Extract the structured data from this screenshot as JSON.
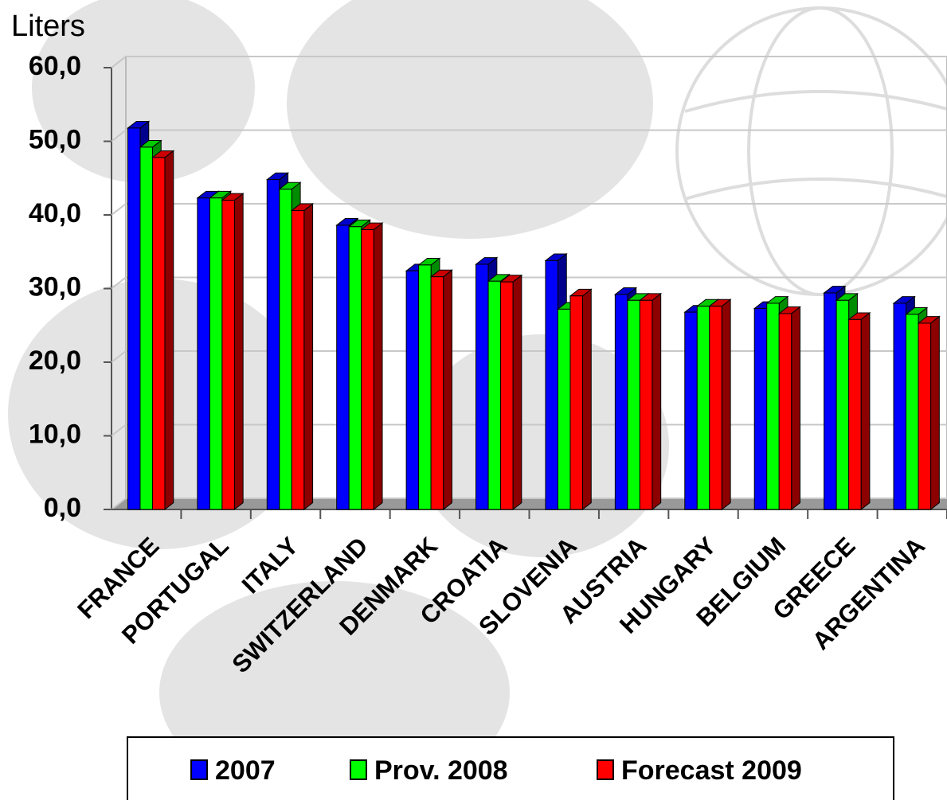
{
  "chart_data": {
    "type": "bar3d",
    "y_label": "Liters",
    "categories": [
      "FRANCE",
      "PORTUGAL",
      "ITALY",
      "SWITZERLAND",
      "DENMARK",
      "CROATIA",
      "SLOVENIA",
      "AUSTRIA",
      "HUNGARY",
      "BELGIUM",
      "GREECE",
      "ARGENTINA"
    ],
    "series": [
      {
        "name": "2007",
        "color": "#0000ff",
        "values": [
          51.8,
          42.3,
          44.8,
          38.6,
          32.4,
          33.3,
          33.8,
          29.2,
          26.8,
          27.3,
          29.4,
          28.0
        ]
      },
      {
        "name": "Prov. 2008",
        "color": "#00ff00",
        "values": [
          49.2,
          42.3,
          43.5,
          38.4,
          33.2,
          31.0,
          27.2,
          28.4,
          27.6,
          28.0,
          28.4,
          26.5
        ]
      },
      {
        "name": "Forecast 2009",
        "color": "#ff0000",
        "values": [
          47.8,
          42.0,
          40.6,
          38.0,
          31.6,
          30.9,
          29.0,
          28.4,
          27.6,
          26.6,
          25.8,
          25.3
        ]
      }
    ],
    "ylim": [
      0,
      60
    ],
    "yticks": [
      {
        "value": 0,
        "label": "0,0"
      },
      {
        "value": 10,
        "label": "10,0"
      },
      {
        "value": 20,
        "label": "20,0"
      },
      {
        "value": 30,
        "label": "30,0"
      },
      {
        "value": 40,
        "label": "40,0"
      },
      {
        "value": 50,
        "label": "50,0"
      },
      {
        "value": 60,
        "label": "60,0"
      }
    ],
    "grid": true
  }
}
